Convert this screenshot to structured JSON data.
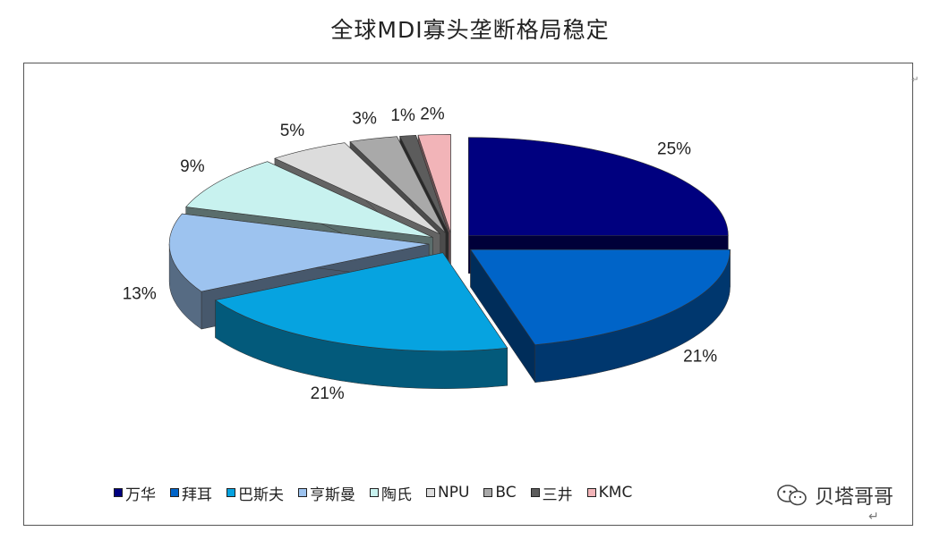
{
  "chart_data": {
    "type": "pie",
    "title": "全球MDI寡头垄断格局稳定",
    "legend_position": "bottom",
    "labels": [
      "万华",
      "拜耳",
      "巴斯夫",
      "亨斯曼",
      "陶氏",
      "NPU",
      "BC",
      "三井",
      "KMC"
    ],
    "values": [
      25,
      21,
      21,
      13,
      9,
      5,
      3,
      1,
      2
    ],
    "value_labels": [
      "25%",
      "21%",
      "21%",
      "13%",
      "9%",
      "5%",
      "3%",
      "1%",
      "2%"
    ],
    "colors": [
      "#00007f",
      "#0064c8",
      "#06a3e0",
      "#9dc3ef",
      "#c8f2ef",
      "#dcdcdc",
      "#a9a9a9",
      "#5c5c5c",
      "#f2b4b8"
    ]
  },
  "watermark": {
    "text": "贝塔哥哥",
    "icon": "wechat-icon"
  },
  "marks": {
    "return": "↵",
    "tick": "↵"
  }
}
